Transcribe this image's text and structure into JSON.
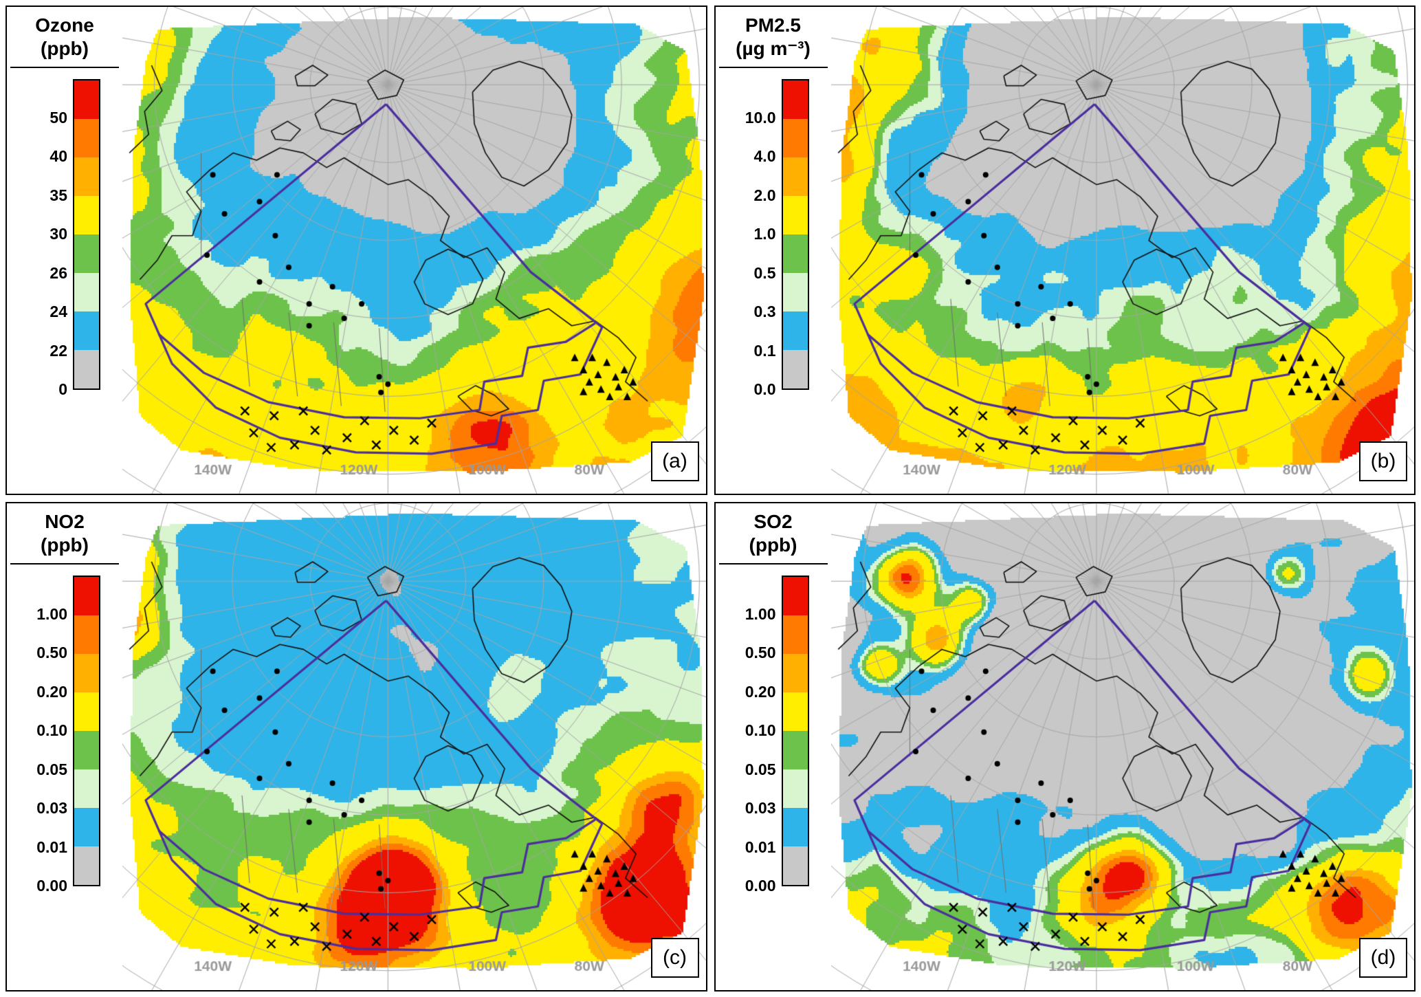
{
  "figure": {
    "background": "#ffffff",
    "grid_color": "#a6a6a6",
    "purple": "#4b2e9e",
    "lon_label_color": "#9a9a9a",
    "palette_top_to_bottom": [
      "#ee1000",
      "#ff7a00",
      "#ffb000",
      "#ffee00",
      "#6cc24a",
      "#d8f5cf",
      "#2fb4e9",
      "#c8c8c8"
    ],
    "lon_labels": [
      "140W",
      "120W",
      "100W",
      "80W"
    ],
    "panels": [
      {
        "id": "a",
        "label": "(a)",
        "title_line1": "Ozone",
        "title_line2": "(ppb)",
        "colorbar_labels": [
          "50",
          "40",
          "35",
          "30",
          "26",
          "24",
          "22",
          "0"
        ]
      },
      {
        "id": "b",
        "label": "(b)",
        "title_line1": "PM2.5",
        "title_line2": "(µg m⁻³)",
        "colorbar_labels": [
          "10.0",
          "4.0",
          "2.0",
          "1.0",
          "0.5",
          "0.3",
          "0.1",
          "0.0"
        ]
      },
      {
        "id": "c",
        "label": "(c)",
        "title_line1": "NO2",
        "title_line2": "(ppb)",
        "colorbar_labels": [
          "1.00",
          "0.50",
          "0.20",
          "0.10",
          "0.05",
          "0.03",
          "0.01",
          "0.00"
        ]
      },
      {
        "id": "d",
        "label": "(d)",
        "title_line1": "SO2",
        "title_line2": "(ppb)",
        "colorbar_labels": [
          "1.00",
          "0.50",
          "0.20",
          "0.10",
          "0.05",
          "0.03",
          "0.01",
          "0.00"
        ]
      }
    ]
  },
  "chart_data": {
    "type": "heatmap",
    "subtype": "polar-stereographic map panels",
    "description": "Four-panel map figure of surface pollutant concentrations over North America and the Arctic, with monitoring-station markers (dots, crosses, triangles) and purple analysis-domain outlines.",
    "panels": [
      {
        "id": "a",
        "pollutant": "Ozone",
        "units": "ppb",
        "scale_breaks_low_to_high": [
          0,
          22,
          24,
          26,
          30,
          35,
          40,
          50
        ],
        "scale_colors_low_to_high": [
          "#c8c8c8",
          "#2fb4e9",
          "#d8f5cf",
          "#6cc24a",
          "#ffee00",
          "#ffb000",
          "#ff7a00",
          "#ee1000"
        ],
        "render": {
          "seed": 7,
          "dw": 1.05,
          "nw": 0.45,
          "thresholds": [
            0.26,
            0.5,
            0.6,
            0.7,
            1.0,
            1.12,
            1.22
          ],
          "hotspots": [
            [
              0.63,
              0.88,
              0.1,
              0.5
            ],
            [
              0.98,
              0.62,
              0.12,
              0.3
            ],
            [
              0.015,
              0.06,
              0.1,
              0.3
            ],
            [
              0.68,
              0.25,
              0.13,
              -0.45
            ],
            [
              0.4,
              0.22,
              0.1,
              -0.28
            ],
            [
              0.52,
              0.38,
              0.1,
              -0.2
            ]
          ]
        }
      },
      {
        "id": "b",
        "pollutant": "PM2.5",
        "units": "µg m⁻³",
        "scale_breaks_low_to_high": [
          0.0,
          0.1,
          0.3,
          0.5,
          1.0,
          2.0,
          4.0,
          10.0
        ],
        "scale_colors_low_to_high": [
          "#c8c8c8",
          "#2fb4e9",
          "#d8f5cf",
          "#6cc24a",
          "#ffee00",
          "#ffb000",
          "#ff7a00",
          "#ee1000"
        ],
        "render": {
          "seed": 13,
          "dw": 1.25,
          "nw": 0.5,
          "thresholds": [
            0.45,
            0.62,
            0.7,
            0.78,
            1.05,
            1.25,
            1.45
          ],
          "hotspots": [
            [
              0.015,
              0.18,
              0.07,
              0.55
            ],
            [
              0.02,
              0.32,
              0.06,
              0.4
            ],
            [
              0.95,
              0.88,
              0.1,
              0.55
            ],
            [
              0.33,
              0.8,
              0.06,
              0.35
            ],
            [
              0.1,
              0.04,
              0.1,
              0.35
            ],
            [
              0.68,
              0.25,
              0.13,
              -0.6
            ],
            [
              0.42,
              0.2,
              0.09,
              -0.3
            ]
          ]
        }
      },
      {
        "id": "c",
        "pollutant": "NO2",
        "units": "ppb",
        "scale_breaks_low_to_high": [
          0.0,
          0.01,
          0.03,
          0.05,
          0.1,
          0.2,
          0.5,
          1.0
        ],
        "scale_colors_low_to_high": [
          "#c8c8c8",
          "#2fb4e9",
          "#d8f5cf",
          "#6cc24a",
          "#ffee00",
          "#ffb000",
          "#ff7a00",
          "#ee1000"
        ],
        "render": {
          "seed": 29,
          "dw": 0.95,
          "nw": 0.45,
          "thresholds": [
            0.06,
            0.52,
            0.64,
            0.76,
            1.0,
            1.1,
            1.2
          ],
          "hotspots": [
            [
              0.45,
              0.84,
              0.12,
              0.6
            ],
            [
              0.47,
              0.78,
              0.08,
              0.5
            ],
            [
              0.88,
              0.8,
              0.1,
              0.55
            ],
            [
              0.93,
              0.6,
              0.08,
              0.35
            ],
            [
              0.015,
              0.25,
              0.07,
              0.5
            ],
            [
              0.02,
              0.12,
              0.06,
              0.45
            ],
            [
              0.66,
              0.38,
              0.06,
              0.3
            ]
          ]
        }
      },
      {
        "id": "d",
        "pollutant": "SO2",
        "units": "ppb",
        "scale_breaks_low_to_high": [
          0.0,
          0.01,
          0.03,
          0.05,
          0.1,
          0.2,
          0.5,
          1.0
        ],
        "scale_colors_low_to_high": [
          "#c8c8c8",
          "#2fb4e9",
          "#d8f5cf",
          "#6cc24a",
          "#ffee00",
          "#ffb000",
          "#ff7a00",
          "#ee1000"
        ],
        "render": {
          "seed": 41,
          "dw": 0.8,
          "nw": 0.5,
          "thresholds": [
            0.48,
            0.62,
            0.7,
            0.78,
            1.02,
            1.14,
            1.26
          ],
          "hotspots": [
            [
              0.13,
              0.15,
              0.05,
              0.8
            ],
            [
              0.18,
              0.28,
              0.05,
              0.7
            ],
            [
              0.08,
              0.33,
              0.04,
              0.6
            ],
            [
              0.24,
              0.2,
              0.04,
              0.6
            ],
            [
              0.47,
              0.8,
              0.09,
              0.65
            ],
            [
              0.52,
              0.74,
              0.06,
              0.5
            ],
            [
              0.88,
              0.82,
              0.09,
              0.6
            ],
            [
              0.92,
              0.35,
              0.04,
              0.4
            ],
            [
              0.78,
              0.14,
              0.04,
              0.45
            ]
          ]
        }
      }
    ],
    "geometry": {
      "pole": [
        0.455,
        0.16
      ],
      "parallel_spacing": 0.16,
      "meridian_step_deg": 10,
      "domain": [
        [
          0.06,
          0.045
        ],
        [
          0.5,
          0.02
        ],
        [
          0.88,
          0.035
        ],
        [
          0.965,
          0.09
        ],
        [
          0.99,
          0.3
        ],
        [
          0.995,
          0.6
        ],
        [
          0.96,
          0.88
        ],
        [
          0.87,
          0.935
        ],
        [
          0.6,
          0.955
        ],
        [
          0.3,
          0.95
        ],
        [
          0.1,
          0.91
        ],
        [
          0.03,
          0.84
        ],
        [
          0.012,
          0.6
        ],
        [
          0.018,
          0.3
        ],
        [
          0.04,
          0.11
        ]
      ],
      "purple_outer": [
        [
          0.452,
          0.2
        ],
        [
          0.04,
          0.61
        ],
        [
          0.085,
          0.733
        ],
        [
          0.16,
          0.823
        ],
        [
          0.27,
          0.885
        ],
        [
          0.4,
          0.915
        ],
        [
          0.53,
          0.918
        ],
        [
          0.64,
          0.897
        ],
        [
          0.65,
          0.84
        ],
        [
          0.712,
          0.828
        ],
        [
          0.722,
          0.768
        ],
        [
          0.785,
          0.755
        ],
        [
          0.822,
          0.658
        ],
        [
          0.7,
          0.545
        ],
        [
          0.452,
          0.2
        ]
      ],
      "purple_inner": [
        [
          0.062,
          0.672
        ],
        [
          0.14,
          0.752
        ],
        [
          0.25,
          0.812
        ],
        [
          0.38,
          0.843
        ],
        [
          0.51,
          0.845
        ],
        [
          0.612,
          0.828
        ],
        [
          0.62,
          0.77
        ],
        [
          0.685,
          0.758
        ],
        [
          0.695,
          0.7
        ],
        [
          0.76,
          0.688
        ],
        [
          0.81,
          0.65
        ]
      ],
      "coastlines": [
        [
          [
            0.03,
            0.56
          ],
          [
            0.06,
            0.52
          ],
          [
            0.085,
            0.47
          ],
          [
            0.12,
            0.47
          ],
          [
            0.135,
            0.42
          ],
          [
            0.11,
            0.38
          ],
          [
            0.15,
            0.335
          ],
          [
            0.19,
            0.3
          ],
          [
            0.23,
            0.315
          ],
          [
            0.27,
            0.29
          ],
          [
            0.31,
            0.3
          ],
          [
            0.35,
            0.33
          ],
          [
            0.38,
            0.31
          ],
          [
            0.42,
            0.34
          ],
          [
            0.455,
            0.365
          ],
          [
            0.49,
            0.355
          ],
          [
            0.53,
            0.39
          ],
          [
            0.56,
            0.43
          ],
          [
            0.545,
            0.48
          ],
          [
            0.585,
            0.515
          ],
          [
            0.625,
            0.495
          ],
          [
            0.655,
            0.545
          ],
          [
            0.64,
            0.6
          ],
          [
            0.68,
            0.64
          ],
          [
            0.73,
            0.62
          ],
          [
            0.77,
            0.655
          ],
          [
            0.81,
            0.645
          ],
          [
            0.85,
            0.68
          ],
          [
            0.88,
            0.72
          ],
          [
            0.862,
            0.77
          ],
          [
            0.9,
            0.81
          ]
        ],
        [
          [
            0.52,
            0.52
          ],
          [
            0.558,
            0.498
          ],
          [
            0.598,
            0.518
          ],
          [
            0.618,
            0.56
          ],
          [
            0.6,
            0.61
          ],
          [
            0.558,
            0.632
          ],
          [
            0.518,
            0.61
          ],
          [
            0.5,
            0.565
          ],
          [
            0.52,
            0.52
          ]
        ],
        [
          [
            0.6,
            0.175
          ],
          [
            0.635,
            0.13
          ],
          [
            0.68,
            0.112
          ],
          [
            0.722,
            0.128
          ],
          [
            0.752,
            0.17
          ],
          [
            0.77,
            0.222
          ],
          [
            0.762,
            0.28
          ],
          [
            0.73,
            0.335
          ],
          [
            0.688,
            0.368
          ],
          [
            0.65,
            0.35
          ],
          [
            0.622,
            0.3
          ],
          [
            0.603,
            0.24
          ],
          [
            0.6,
            0.175
          ]
        ],
        [
          [
            0.33,
            0.22
          ],
          [
            0.36,
            0.19
          ],
          [
            0.4,
            0.2
          ],
          [
            0.41,
            0.24
          ],
          [
            0.378,
            0.262
          ],
          [
            0.34,
            0.25
          ],
          [
            0.33,
            0.22
          ]
        ],
        [
          [
            0.42,
            0.152
          ],
          [
            0.45,
            0.13
          ],
          [
            0.482,
            0.15
          ],
          [
            0.47,
            0.182
          ],
          [
            0.438,
            0.19
          ],
          [
            0.42,
            0.152
          ]
        ],
        [
          [
            0.296,
            0.142
          ],
          [
            0.326,
            0.12
          ],
          [
            0.352,
            0.14
          ],
          [
            0.33,
            0.162
          ],
          [
            0.3,
            0.162
          ],
          [
            0.296,
            0.142
          ]
        ],
        [
          [
            0.255,
            0.255
          ],
          [
            0.283,
            0.235
          ],
          [
            0.305,
            0.252
          ],
          [
            0.288,
            0.275
          ],
          [
            0.262,
            0.272
          ],
          [
            0.255,
            0.255
          ]
        ],
        [
          [
            0.575,
            0.8
          ],
          [
            0.605,
            0.778
          ],
          [
            0.638,
            0.798
          ],
          [
            0.662,
            0.826
          ],
          [
            0.632,
            0.84
          ],
          [
            0.598,
            0.828
          ],
          [
            0.575,
            0.8
          ]
        ],
        [
          [
            0.012,
            0.3
          ],
          [
            0.045,
            0.262
          ],
          [
            0.038,
            0.215
          ],
          [
            0.068,
            0.172
          ],
          [
            0.05,
            0.12
          ]
        ]
      ],
      "borders": [
        [
          [
            0.135,
            0.3
          ],
          [
            0.135,
            0.52
          ]
        ],
        [
          [
            0.205,
            0.6
          ],
          [
            0.218,
            0.78
          ]
        ],
        [
          [
            0.285,
            0.628
          ],
          [
            0.3,
            0.8
          ]
        ],
        [
          [
            0.362,
            0.648
          ],
          [
            0.375,
            0.82
          ]
        ],
        [
          [
            0.44,
            0.66
          ],
          [
            0.45,
            0.832
          ]
        ]
      ],
      "markers": {
        "dots": [
          [
            0.155,
            0.345
          ],
          [
            0.175,
            0.425
          ],
          [
            0.145,
            0.51
          ],
          [
            0.235,
            0.4
          ],
          [
            0.262,
            0.47
          ],
          [
            0.235,
            0.565
          ],
          [
            0.285,
            0.535
          ],
          [
            0.32,
            0.61
          ],
          [
            0.36,
            0.575
          ],
          [
            0.38,
            0.64
          ],
          [
            0.32,
            0.655
          ],
          [
            0.41,
            0.61
          ],
          [
            0.265,
            0.345
          ],
          [
            0.44,
            0.76
          ],
          [
            0.455,
            0.775
          ],
          [
            0.443,
            0.792
          ]
        ],
        "xs": [
          [
            0.225,
            0.875
          ],
          [
            0.26,
            0.84
          ],
          [
            0.295,
            0.9
          ],
          [
            0.33,
            0.87
          ],
          [
            0.35,
            0.91
          ],
          [
            0.385,
            0.885
          ],
          [
            0.415,
            0.85
          ],
          [
            0.435,
            0.9
          ],
          [
            0.465,
            0.87
          ],
          [
            0.5,
            0.89
          ],
          [
            0.53,
            0.855
          ],
          [
            0.31,
            0.83
          ],
          [
            0.255,
            0.905
          ],
          [
            0.21,
            0.83
          ]
        ],
        "triangles": [
          [
            0.775,
            0.72
          ],
          [
            0.79,
            0.745
          ],
          [
            0.805,
            0.72
          ],
          [
            0.815,
            0.755
          ],
          [
            0.83,
            0.73
          ],
          [
            0.845,
            0.76
          ],
          [
            0.82,
            0.785
          ],
          [
            0.835,
            0.8
          ],
          [
            0.85,
            0.78
          ],
          [
            0.86,
            0.745
          ],
          [
            0.8,
            0.77
          ],
          [
            0.865,
            0.8
          ],
          [
            0.79,
            0.79
          ],
          [
            0.875,
            0.77
          ]
        ]
      },
      "lon_label_u": [
        0.155,
        0.405,
        0.625,
        0.8
      ],
      "lon_label_v": 0.952
    }
  }
}
